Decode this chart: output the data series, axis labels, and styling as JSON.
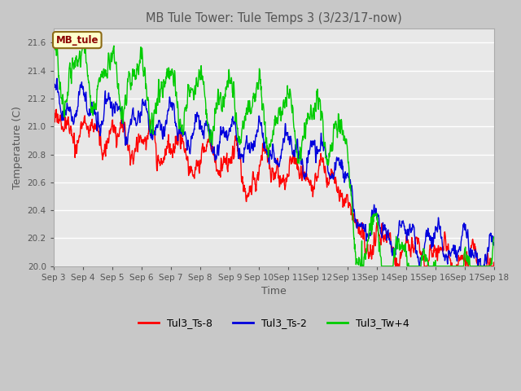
{
  "title": "MB Tule Tower: Tule Temps 3 (3/23/17-now)",
  "xlabel": "Time",
  "ylabel": "Temperature (C)",
  "ylim": [
    20.0,
    21.7
  ],
  "yticks": [
    20.0,
    20.2,
    20.4,
    20.6,
    20.8,
    21.0,
    21.2,
    21.4,
    21.6
  ],
  "annotation_text": "MB_tule",
  "annotation_color": "#8b0000",
  "annotation_bg": "#ffffcc",
  "annotation_edge": "#8b6914",
  "legend_entries": [
    "Tul3_Ts-8",
    "Tul3_Ts-2",
    "Tul3_Tw+4"
  ],
  "line_colors": [
    "#ff0000",
    "#0000dd",
    "#00cc00"
  ],
  "plot_bg": "#e8e8e8",
  "fig_bg": "#c8c8c8",
  "n_days": 15,
  "tick_labels": [
    "Sep 3",
    "Sep 4",
    "Sep 5",
    "Sep 6",
    "Sep 7",
    "Sep 8",
    "Sep 9",
    "Sep 10",
    "Sep 11",
    "Sep 12",
    "Sep 13",
    "Sep 14",
    "Sep 15",
    "Sep 16",
    "Sep 17",
    "Sep 18"
  ]
}
